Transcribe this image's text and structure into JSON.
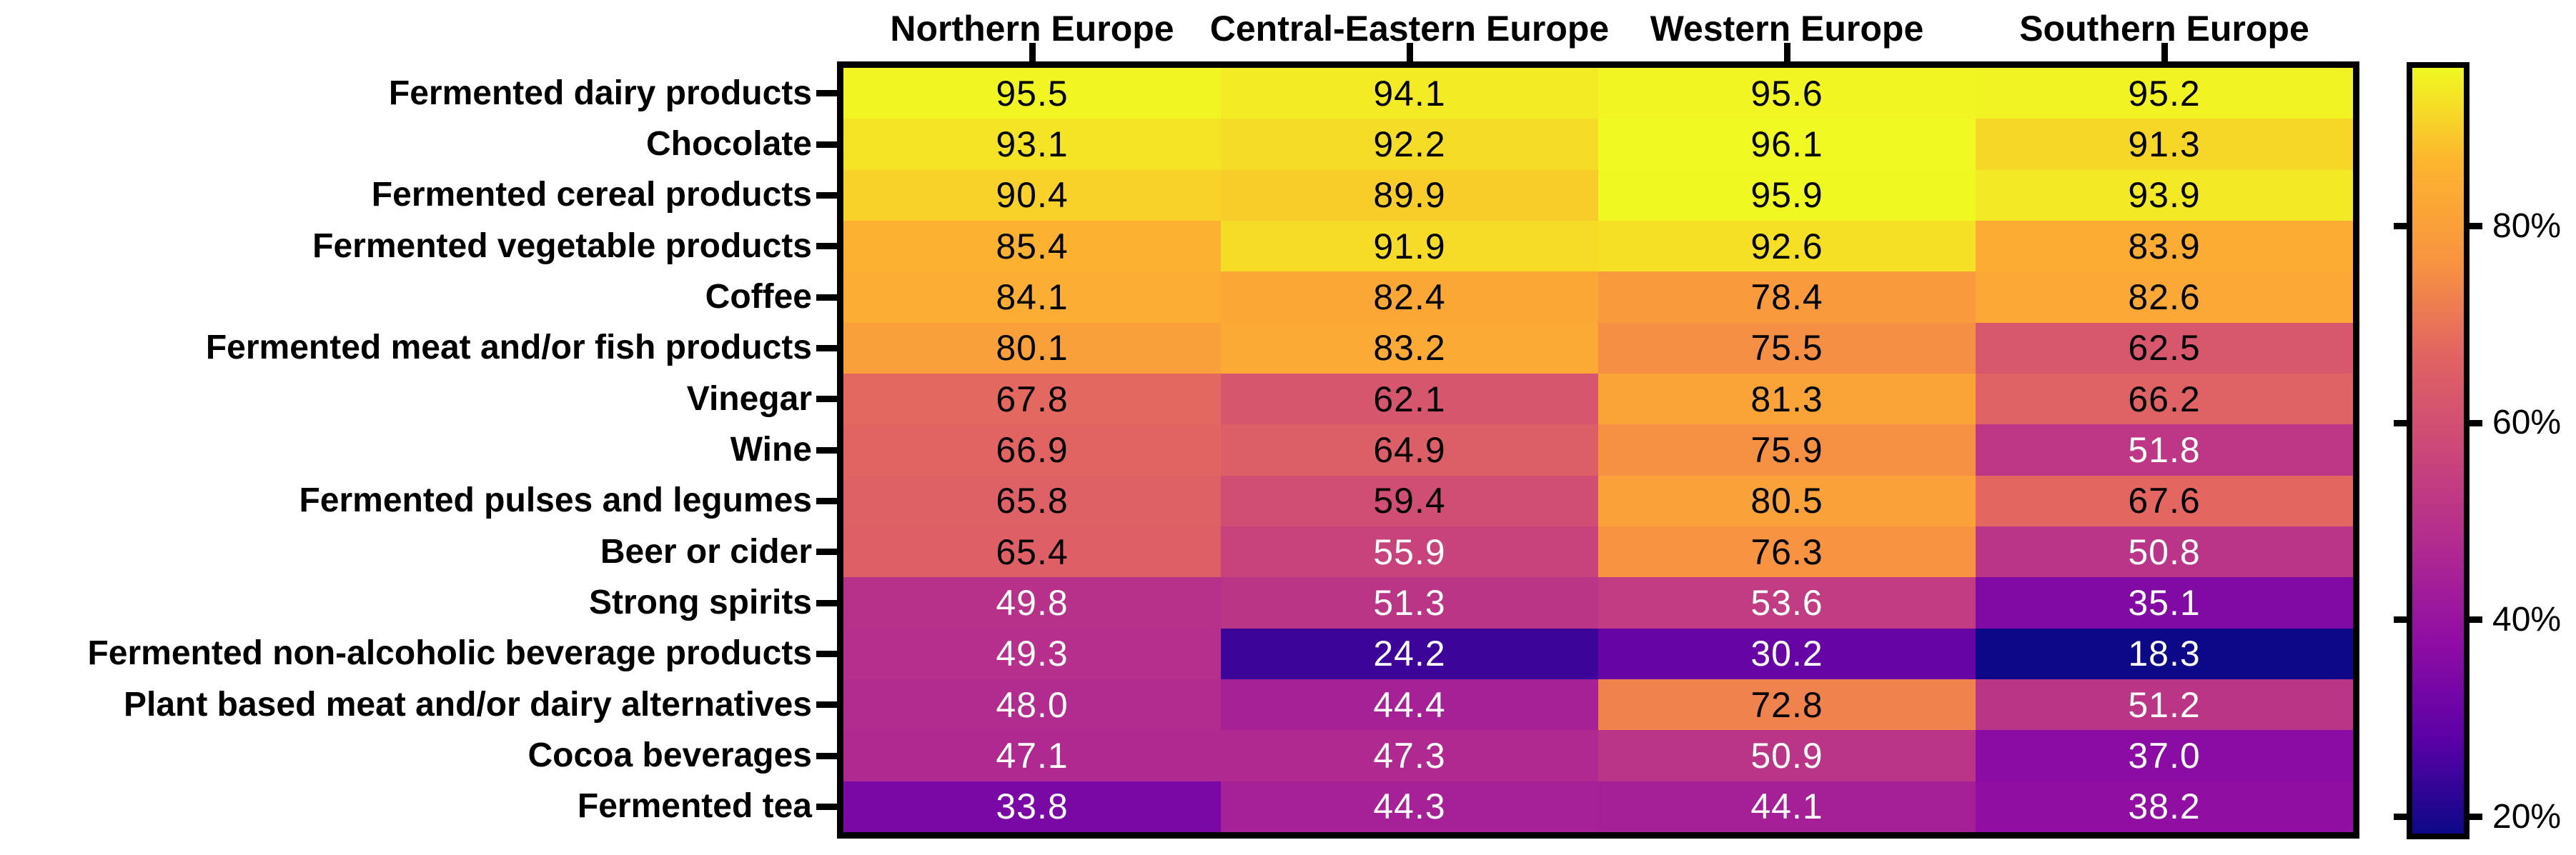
{
  "chart_data": {
    "type": "heatmap",
    "title": "",
    "columns": [
      "Northern Europe",
      "Central-Eastern Europe",
      "Western Europe",
      "Southern Europe"
    ],
    "rows": [
      "Fermented dairy products",
      "Chocolate",
      "Fermented cereal products",
      "Fermented vegetable products",
      "Coffee",
      "Fermented meat and/or fish products",
      "Vinegar",
      "Wine",
      "Fermented pulses and legumes",
      "Beer or cider",
      "Strong spirits",
      "Fermented non-alcoholic beverage products",
      "Plant based meat and/or dairy alternatives",
      "Cocoa beverages",
      "Fermented tea"
    ],
    "values": [
      [
        95.5,
        94.1,
        95.6,
        95.2
      ],
      [
        93.1,
        92.2,
        96.1,
        91.3
      ],
      [
        90.4,
        89.9,
        95.9,
        93.9
      ],
      [
        85.4,
        91.9,
        92.6,
        83.9
      ],
      [
        84.1,
        82.4,
        78.4,
        82.6
      ],
      [
        80.1,
        83.2,
        75.5,
        62.5
      ],
      [
        67.8,
        62.1,
        81.3,
        66.2
      ],
      [
        66.9,
        64.9,
        75.9,
        51.8
      ],
      [
        65.8,
        59.4,
        80.5,
        67.6
      ],
      [
        65.4,
        55.9,
        76.3,
        50.8
      ],
      [
        49.8,
        51.3,
        53.6,
        35.1
      ],
      [
        49.3,
        24.2,
        30.2,
        18.3
      ],
      [
        48.0,
        44.4,
        72.8,
        51.2
      ],
      [
        47.1,
        47.3,
        50.9,
        37.0
      ],
      [
        33.8,
        44.3,
        44.1,
        38.2
      ]
    ],
    "value_decimals": 1,
    "colormap": "plasma",
    "scale": {
      "vmin": 18.3,
      "vmax": 96.1
    },
    "colorbar": {
      "position": "right",
      "tick_values": [
        80,
        60,
        40,
        20
      ],
      "tick_labels": [
        "80%",
        "60%",
        "40%",
        "20%"
      ]
    },
    "grid": false,
    "legend_position": "right-colorbar"
  },
  "colors": {
    "background": "#ffffff",
    "spine": "#000000",
    "annotation_dark": "#000000",
    "annotation_light": "#ffffff",
    "plasma_min": "#0d0887",
    "plasma_mid": "#cb4779",
    "plasma_max": "#f0f921"
  }
}
